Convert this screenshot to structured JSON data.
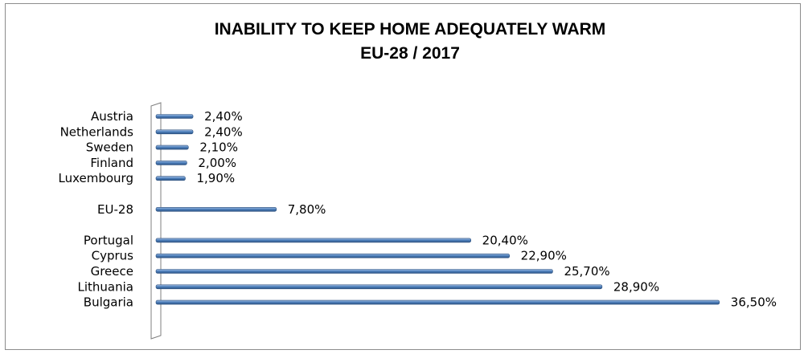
{
  "chart_data": {
    "type": "bar",
    "orientation": "horizontal",
    "title": "INABILITY TO KEEP HOME ADEQUATELY WARM",
    "subtitle": "EU-28 / 2017",
    "categories": [
      "Austria",
      "Netherlands",
      "Sweden",
      "Finland",
      "Luxembourg",
      "",
      "EU-28",
      "",
      "Portugal",
      "Cyprus",
      "Greece",
      "Lithuania",
      "Bulgaria"
    ],
    "values": [
      2.4,
      2.4,
      2.1,
      2.0,
      1.9,
      null,
      7.8,
      null,
      20.4,
      22.9,
      25.7,
      28.9,
      36.5
    ],
    "value_labels": [
      "2,40%",
      "2,40%",
      "2,10%",
      "2,00%",
      "1,90%",
      "",
      "7,80%",
      "",
      "20,40%",
      "22,90%",
      "25,70%",
      "28,90%",
      "36,50%"
    ],
    "xlabel": "",
    "ylabel": "",
    "grid": false,
    "legend": "none",
    "bar_color": "#4f81bd"
  }
}
